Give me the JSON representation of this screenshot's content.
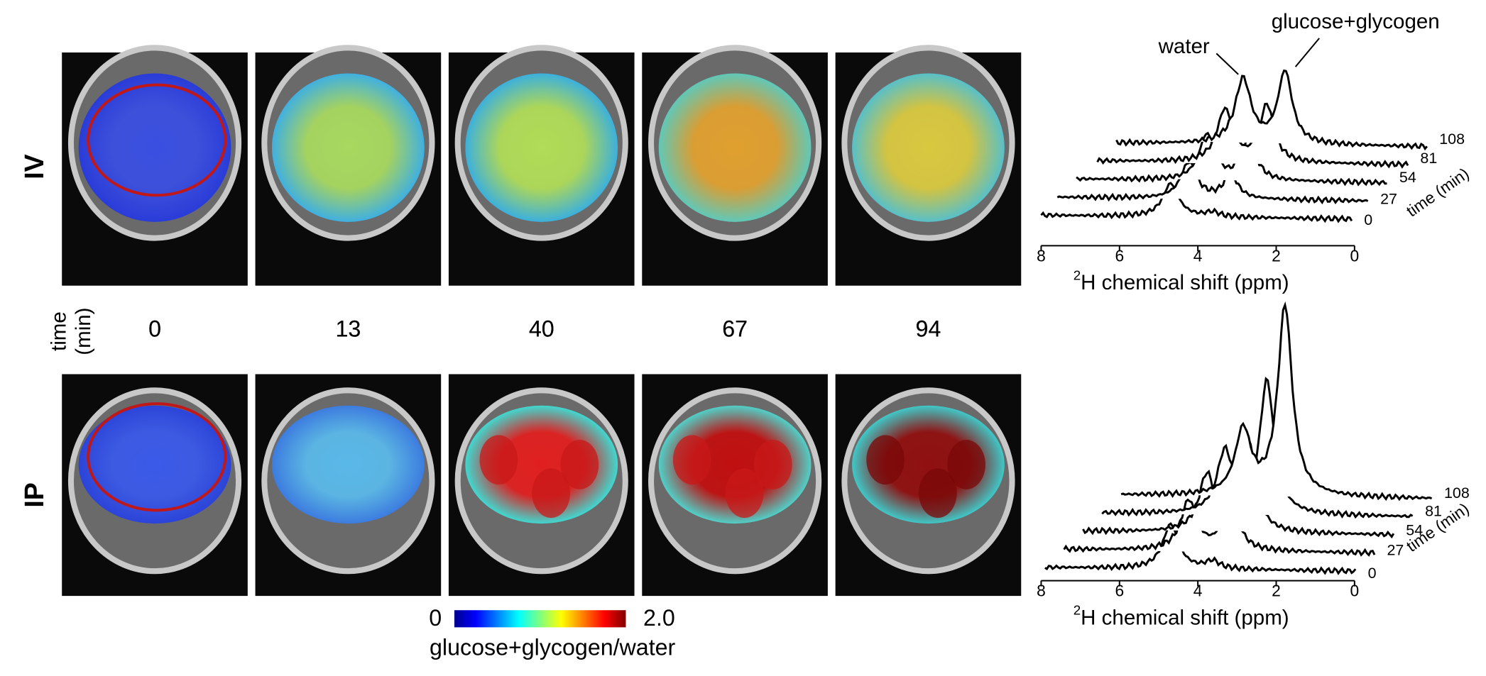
{
  "row_labels": [
    "IV",
    "IP"
  ],
  "time_label": [
    "time",
    "(min)"
  ],
  "times": [
    0,
    13,
    40,
    67,
    94
  ],
  "colorbar": {
    "min_label": "0",
    "max_label": "2.0",
    "label": "glucose+glycogen/water"
  },
  "spectra": [
    {
      "annotations": [
        "water",
        "glucose+glycogen"
      ],
      "xticks": [
        8,
        6,
        4,
        2,
        0
      ],
      "xlabel_sup": "2",
      "xlabel": "H chemical shift (ppm)",
      "trace_labels": [
        0,
        27,
        54,
        81,
        108
      ],
      "trace_axis_label": "time (min)"
    },
    {
      "xticks": [
        8,
        6,
        4,
        2,
        0
      ],
      "xlabel_sup": "2",
      "xlabel": "H chemical shift (ppm)",
      "trace_labels": [
        0,
        27,
        54,
        81,
        108
      ],
      "trace_axis_label": "time (min)"
    }
  ]
}
